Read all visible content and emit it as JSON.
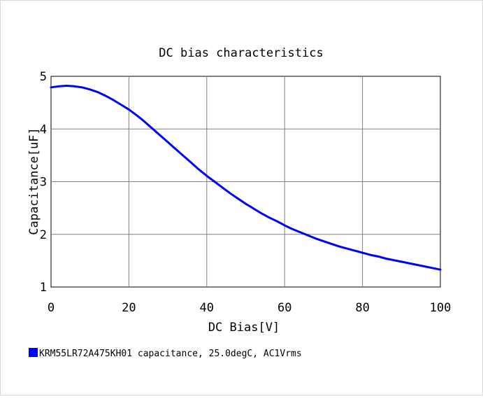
{
  "chart_data": {
    "type": "line",
    "title": "DC bias characteristics",
    "xlabel": "DC Bias[V]",
    "ylabel": "Capacitance[uF]",
    "xlim": [
      0,
      100
    ],
    "ylim": [
      1,
      5
    ],
    "xticks": [
      "0",
      "20",
      "40",
      "60",
      "80",
      "100"
    ],
    "yticks": [
      "1",
      "2",
      "3",
      "4",
      "5"
    ],
    "grid": true,
    "legend_position": "bottom-left",
    "series": [
      {
        "name": "KRM55LR72A475KH01 capacitance, 25.0degC, AC1Vrms",
        "color": "#0000ff",
        "x": [
          0,
          2,
          4,
          6,
          8,
          10,
          12,
          14,
          16,
          18,
          20,
          22,
          24,
          26,
          28,
          30,
          32,
          34,
          36,
          38,
          40,
          42,
          44,
          46,
          48,
          50,
          52,
          54,
          56,
          58,
          60,
          62,
          64,
          66,
          68,
          70,
          72,
          74,
          76,
          78,
          80,
          82,
          84,
          86,
          88,
          90,
          92,
          94,
          96,
          98,
          100
        ],
        "y": [
          4.79,
          4.81,
          4.82,
          4.81,
          4.79,
          4.75,
          4.7,
          4.63,
          4.55,
          4.46,
          4.37,
          4.26,
          4.14,
          4.01,
          3.88,
          3.75,
          3.62,
          3.49,
          3.36,
          3.23,
          3.11,
          3.0,
          2.89,
          2.78,
          2.68,
          2.58,
          2.49,
          2.4,
          2.32,
          2.25,
          2.17,
          2.1,
          2.04,
          1.98,
          1.92,
          1.87,
          1.82,
          1.77,
          1.73,
          1.69,
          1.65,
          1.61,
          1.58,
          1.54,
          1.51,
          1.48,
          1.45,
          1.42,
          1.39,
          1.36,
          1.33
        ]
      }
    ]
  }
}
